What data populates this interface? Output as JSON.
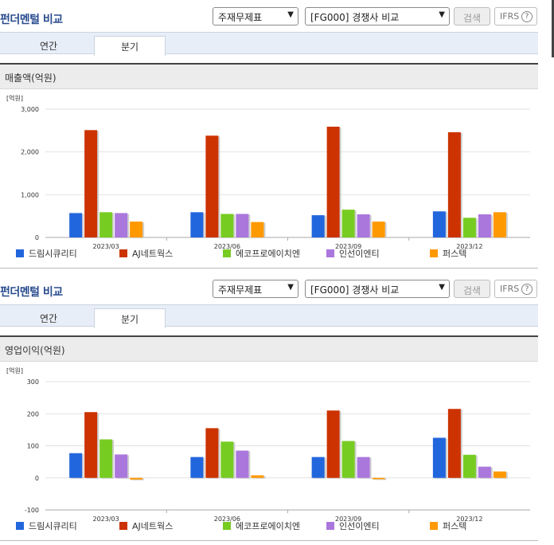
{
  "sections": [
    {
      "title": "펀더멘털 비교",
      "select1": "주재무제표",
      "select2": "[FG000] 경쟁사 비교",
      "search_label": "검색",
      "ifrs_label": "IFRS",
      "help_glyph": "?",
      "tabs": [
        "연간",
        "분기"
      ],
      "active_tab": 1,
      "chart_title": "매출액(억원)"
    },
    {
      "title": "펀더멘털 비교",
      "select1": "주재무제표",
      "select2": "[FG000] 경쟁사 비교",
      "search_label": "검색",
      "ifrs_label": "IFRS",
      "help_glyph": "?",
      "tabs": [
        "연간",
        "분기"
      ],
      "active_tab": 1,
      "chart_title": "영업이익(억원)"
    }
  ],
  "chart_data": [
    {
      "type": "bar",
      "title": "매출액(억원)",
      "unit_label": "[억원]",
      "categories": [
        "2023/03",
        "2023/06",
        "2023/09",
        "2023/12"
      ],
      "ylim": [
        0,
        3000
      ],
      "yticks": [
        0,
        1000,
        2000,
        3000
      ],
      "ytick_labels": [
        "0",
        "1,000",
        "2,000",
        "3,000"
      ],
      "grid": true,
      "legend_position": "bottom",
      "series": [
        {
          "name": "드림시큐리티",
          "color": "#2266dd",
          "values": [
            570,
            590,
            520,
            610
          ]
        },
        {
          "name": "AJ네트웍스",
          "color": "#cc3300",
          "values": [
            2510,
            2380,
            2590,
            2460
          ]
        },
        {
          "name": "에코프로에이치엔",
          "color": "#77cc22",
          "values": [
            590,
            550,
            650,
            460
          ]
        },
        {
          "name": "인선이엔티",
          "color": "#aa77dd",
          "values": [
            570,
            550,
            540,
            540
          ]
        },
        {
          "name": "퍼스텍",
          "color": "#ff9900",
          "values": [
            370,
            360,
            370,
            590
          ]
        }
      ]
    },
    {
      "type": "bar",
      "title": "영업이익(억원)",
      "unit_label": "[억원]",
      "categories": [
        "2023/03",
        "2023/06",
        "2023/09",
        "2023/12"
      ],
      "ylim": [
        -100,
        300
      ],
      "yticks": [
        -100,
        0,
        100,
        200,
        300
      ],
      "ytick_labels": [
        "-100",
        "0",
        "100",
        "200",
        "300"
      ],
      "grid": true,
      "legend_position": "bottom",
      "series": [
        {
          "name": "드림시큐리티",
          "color": "#2266dd",
          "values": [
            77,
            65,
            65,
            125
          ]
        },
        {
          "name": "AJ네트웍스",
          "color": "#cc3300",
          "values": [
            205,
            155,
            210,
            215
          ]
        },
        {
          "name": "에코프로에이치엔",
          "color": "#77cc22",
          "values": [
            120,
            113,
            115,
            72
          ]
        },
        {
          "name": "인선이엔티",
          "color": "#aa77dd",
          "values": [
            73,
            85,
            65,
            35
          ]
        },
        {
          "name": "퍼스텍",
          "color": "#ff9900",
          "values": [
            -5,
            8,
            -4,
            20
          ]
        }
      ]
    }
  ]
}
